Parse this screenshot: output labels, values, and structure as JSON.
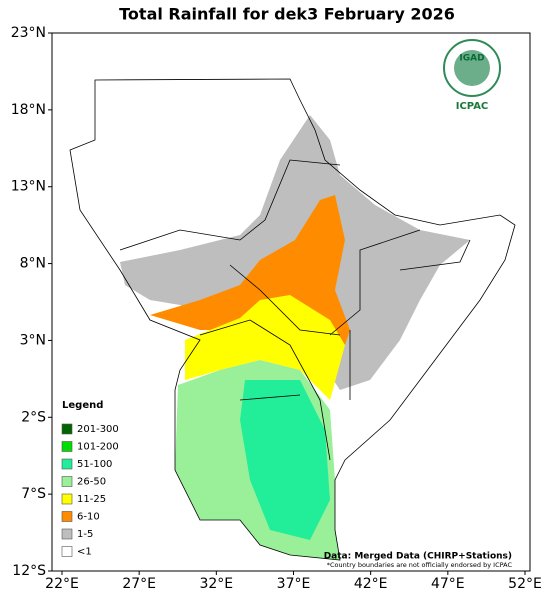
{
  "title": "Total Rainfall for dek3 February 2026",
  "lat_ticks": [
    {
      "value": 23,
      "label": "23°N"
    },
    {
      "value": 18,
      "label": "18°N"
    },
    {
      "value": 13,
      "label": "13°N"
    },
    {
      "value": 8,
      "label": "8°N"
    },
    {
      "value": 3,
      "label": "3°N"
    },
    {
      "value": -2,
      "label": "2°S"
    },
    {
      "value": -7,
      "label": "7°S"
    },
    {
      "value": -12,
      "label": "12°S"
    }
  ],
  "lon_ticks": [
    {
      "value": 22,
      "label": "22°E"
    },
    {
      "value": 27,
      "label": "27°E"
    },
    {
      "value": 32,
      "label": "32°E"
    },
    {
      "value": 37,
      "label": "37°E"
    },
    {
      "value": 42,
      "label": "42°E"
    },
    {
      "value": 47,
      "label": "47°E"
    },
    {
      "value": 52,
      "label": "52°E"
    }
  ],
  "legend": {
    "title": "Legend",
    "items": [
      {
        "label": "201-300",
        "color": "#006400"
      },
      {
        "label": "101-200",
        "color": "#00dd00"
      },
      {
        "label": "51-100",
        "color": "#22ee99"
      },
      {
        "label": "26-50",
        "color": "#99f099"
      },
      {
        "label": "11-25",
        "color": "#ffff00"
      },
      {
        "label": "6-10",
        "color": "#ff8c00"
      },
      {
        "label": "1-5",
        "color": "#bebebe"
      },
      {
        "label": "<1",
        "color": "#ffffff"
      }
    ]
  },
  "source": "Data: Merged Data (CHIRP+Stations)",
  "disclaimer": "*Country boundaries are not officially endorsed by ICPAC",
  "logo": {
    "top": "IGAD",
    "bottom": "ICPAC"
  }
}
